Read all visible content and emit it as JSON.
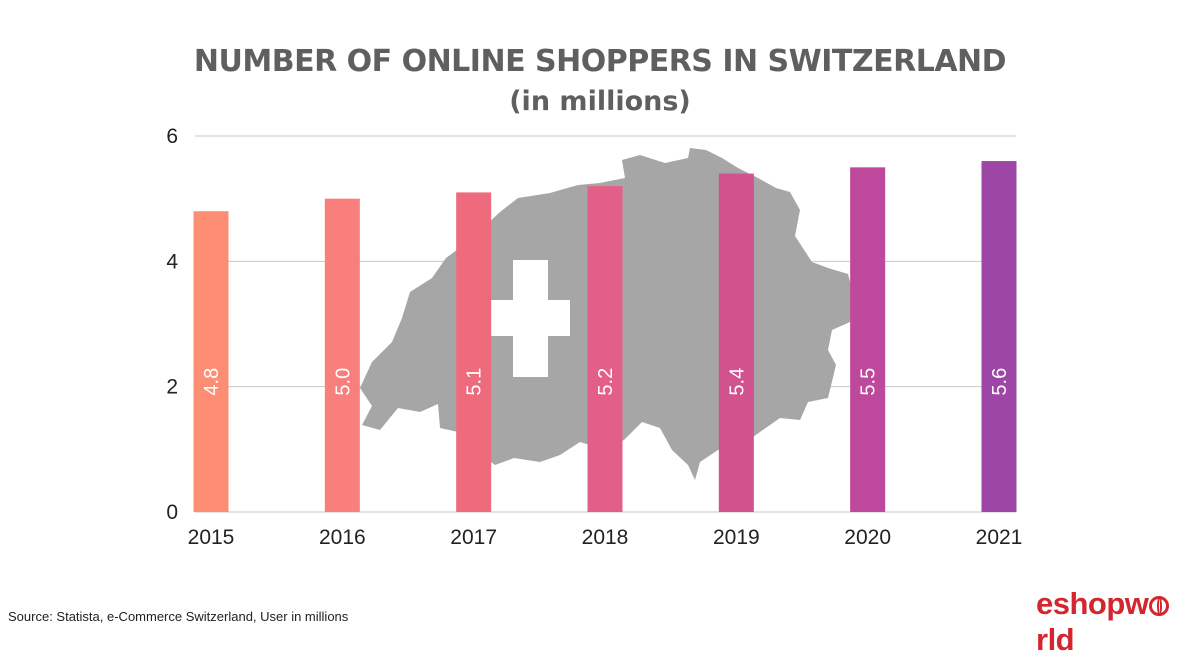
{
  "title": "NUMBER OF ONLINE SHOPPERS IN SWITZERLAND",
  "subtitle": "(in millions)",
  "source": "Source: Statista, e-Commerce Switzerland, User in millions",
  "logo": {
    "part1": "eshopw",
    "part2": "rld"
  },
  "map_color": "#a6a6a6",
  "chart_data": {
    "type": "bar",
    "categories": [
      "2015",
      "2016",
      "2017",
      "2018",
      "2019",
      "2020",
      "2021"
    ],
    "values": [
      4.8,
      5.0,
      5.1,
      5.2,
      5.4,
      5.5,
      5.6
    ],
    "data_labels": [
      "4.8",
      "5.0",
      "5.1",
      "5.2",
      "5.4",
      "5.5",
      "5.6"
    ],
    "colors": [
      "#fd8e74",
      "#f87f7b",
      "#ee6a7d",
      "#e45f87",
      "#d1538e",
      "#be489b",
      "#9e46a6"
    ],
    "ylim": [
      0,
      6
    ],
    "yticks": [
      0,
      2,
      4,
      6
    ],
    "grid": true,
    "xlabel": "",
    "ylabel": ""
  }
}
